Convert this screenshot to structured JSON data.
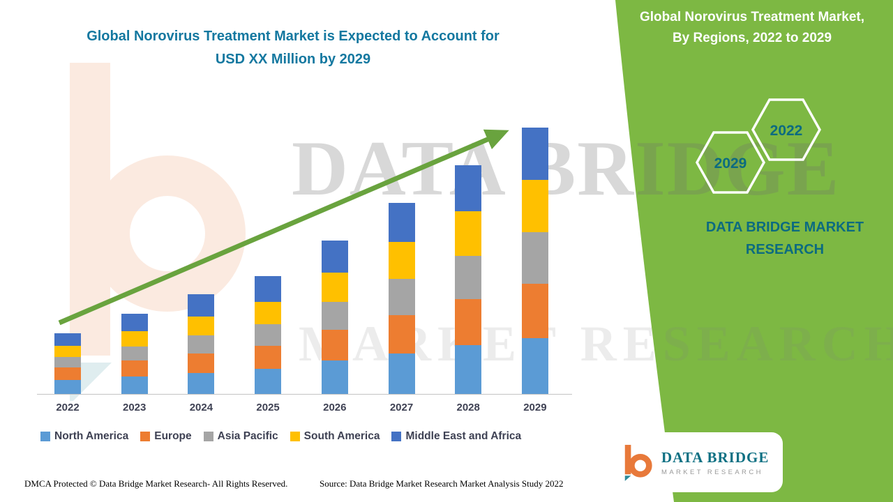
{
  "left_title": {
    "line1": "Global Norovirus Treatment Market is Expected to Account for",
    "line2": "USD XX Million by 2029"
  },
  "right_title": {
    "line1": "Global Norovirus Treatment Market,",
    "line2": "By Regions, 2022 to 2029"
  },
  "hexagons": {
    "front": "2029",
    "back": "2022"
  },
  "brand_text": {
    "line1": "DATA BRIDGE MARKET",
    "line2": "RESEARCH"
  },
  "watermark": {
    "line1": "DATA BRIDGE",
    "line2": "MARKET RESEARCH"
  },
  "logo_card": {
    "name": "DATA BRIDGE",
    "tagline": "MARKET RESEARCH"
  },
  "footer": {
    "left": "DMCA Protected © Data Bridge Market Research- All Rights Reserved.",
    "source": "Source: Data Bridge Market Research Market Analysis Study 2022"
  },
  "colors": {
    "green": "#7DB843",
    "arrow_green": "#69A33E",
    "teal_text": "#0C6B80",
    "title_teal": "#1478A0",
    "logo_orange": "#E8793A"
  },
  "chart_data": {
    "type": "bar",
    "stacked": true,
    "title": "Global Norovirus Treatment Market is Expected to Account for USD XX Million by 2029",
    "xlabel": "",
    "ylabel": "",
    "units": "relative index (actual values masked as USD XX Million)",
    "ylim": [
      0,
      100
    ],
    "grid": false,
    "legend_position": "bottom",
    "trend_arrow": true,
    "categories": [
      "2022",
      "2023",
      "2024",
      "2025",
      "2026",
      "2027",
      "2028",
      "2029"
    ],
    "series": [
      {
        "name": "North America",
        "color": "#5B9BD5",
        "values": [
          5.2,
          6.5,
          7.9,
          9.4,
          12.6,
          15.2,
          18.3,
          20.9
        ]
      },
      {
        "name": "Europe",
        "color": "#ED7D31",
        "values": [
          4.7,
          6.0,
          7.3,
          8.6,
          11.5,
          14.4,
          17.3,
          20.4
        ]
      },
      {
        "name": "Asia Pacific",
        "color": "#A5A5A5",
        "values": [
          3.9,
          5.2,
          6.8,
          8.1,
          10.5,
          13.6,
          16.2,
          19.4
        ]
      },
      {
        "name": "South America",
        "color": "#FFC000",
        "values": [
          4.2,
          5.8,
          7.1,
          8.4,
          11.0,
          13.9,
          16.8,
          19.6
        ]
      },
      {
        "name": "Middle East and Africa",
        "color": "#4472C4",
        "values": [
          4.7,
          6.5,
          8.4,
          9.7,
          12.0,
          14.7,
          17.3,
          19.6
        ]
      }
    ],
    "totals": [
      22.7,
      30.0,
      37.5,
      44.2,
      57.6,
      71.8,
      85.9,
      99.9
    ]
  }
}
